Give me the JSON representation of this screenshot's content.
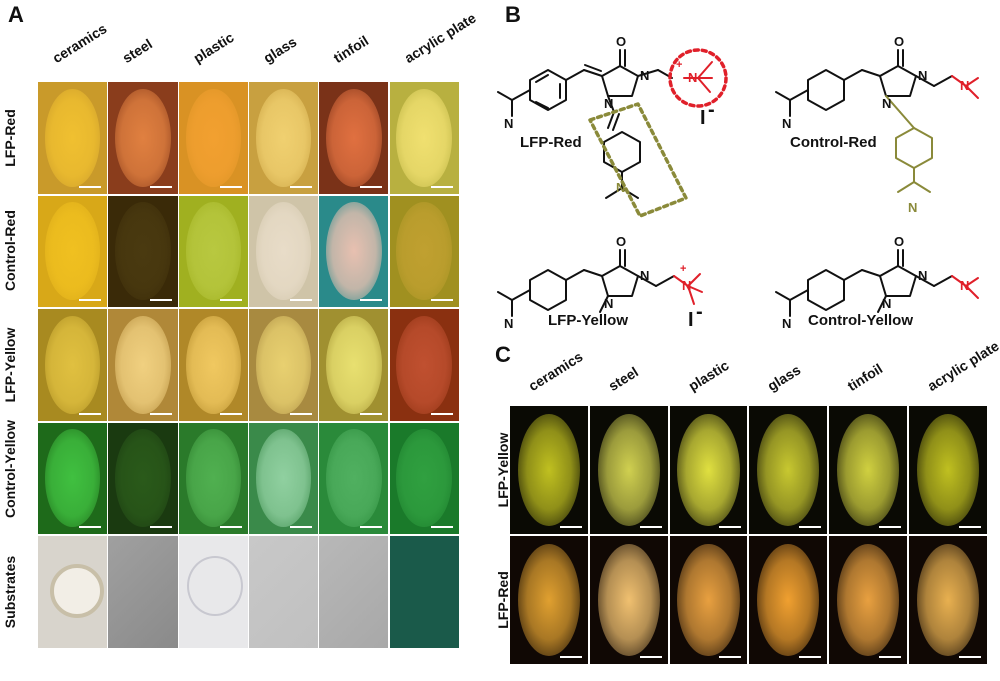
{
  "panels": {
    "a": "A",
    "b": "B",
    "c": "C"
  },
  "substrates": [
    "ceramics",
    "steel",
    "plastic",
    "glass",
    "tinfoil",
    "acrylic plate"
  ],
  "panel_a_rows": [
    {
      "label": "LFP-Red",
      "bg": [
        "#c99a2a",
        "#8a3d1c",
        "#d99224",
        "#c8a040",
        "#7a3218",
        "#b8b040"
      ],
      "fp": [
        "#f0c030",
        "#e08040",
        "#f2a030",
        "#f0d070",
        "#e07040",
        "#f0e070"
      ]
    },
    {
      "label": "Control-Red",
      "bg": [
        "#d8a818",
        "#3a2a08",
        "#a0b020",
        "#cfc4a8",
        "#2a8a8a",
        "#a09020"
      ],
      "fp": [
        "#f0c020",
        "#4a3a10",
        "#b8c840",
        "#e8dcc8",
        "#e8c0b0",
        "#c0a030"
      ]
    },
    {
      "label": "LFP-Yellow",
      "bg": [
        "#a88a20",
        "#b08838",
        "#b08828",
        "#a88a40",
        "#a09030",
        "#8a3010"
      ],
      "fp": [
        "#e0c040",
        "#f0d080",
        "#f0c860",
        "#e8d070",
        "#e8e070",
        "#c05030"
      ]
    },
    {
      "label": "Control-Yellow",
      "bg": [
        "#1e6a1a",
        "#1a3a10",
        "#2a7a2a",
        "#3a8a4a",
        "#2a8a3a",
        "#1a7a2a"
      ],
      "fp": [
        "#40c040",
        "#2a5a1a",
        "#50b050",
        "#90d0a0",
        "#50b060",
        "#30a040"
      ]
    },
    {
      "label": "Substrates",
      "bg": [
        "#d8d4cc",
        "#8a8a8a",
        "#e8e8ea",
        "#c0c0c0",
        "#a8a8a8",
        "#1a5a4a"
      ],
      "fp": [
        "#e8e0d0",
        "#a0a0a0",
        "#f0f0f2",
        "#c8c8c8",
        "#b8b8b8",
        "#1a5a4a"
      ]
    }
  ],
  "panel_c_rows": [
    {
      "label": "LFP-Yellow",
      "bg": "#0a0a04",
      "fp": [
        "#c0c020",
        "#d0d050",
        "#e0e040",
        "#c8c830",
        "#d0d040",
        "#c0c020"
      ]
    },
    {
      "label": "LFP-Red",
      "bg": "#100804",
      "fp": [
        "#e0a030",
        "#f0c070",
        "#e8a040",
        "#f0a030",
        "#e8a040",
        "#e8b050"
      ]
    }
  ],
  "molecules": {
    "lfp_red": "LFP-Red",
    "control_red": "Control-Red",
    "lfp_yellow": "LFP-Yellow",
    "control_yellow": "Control-Yellow"
  },
  "atoms": {
    "o": "O",
    "n": "N",
    "plus": "+",
    "iodide": "I",
    "minus": "-"
  },
  "colors": {
    "red_accent": "#e0202a",
    "olive_accent": "#8a8a3a"
  }
}
